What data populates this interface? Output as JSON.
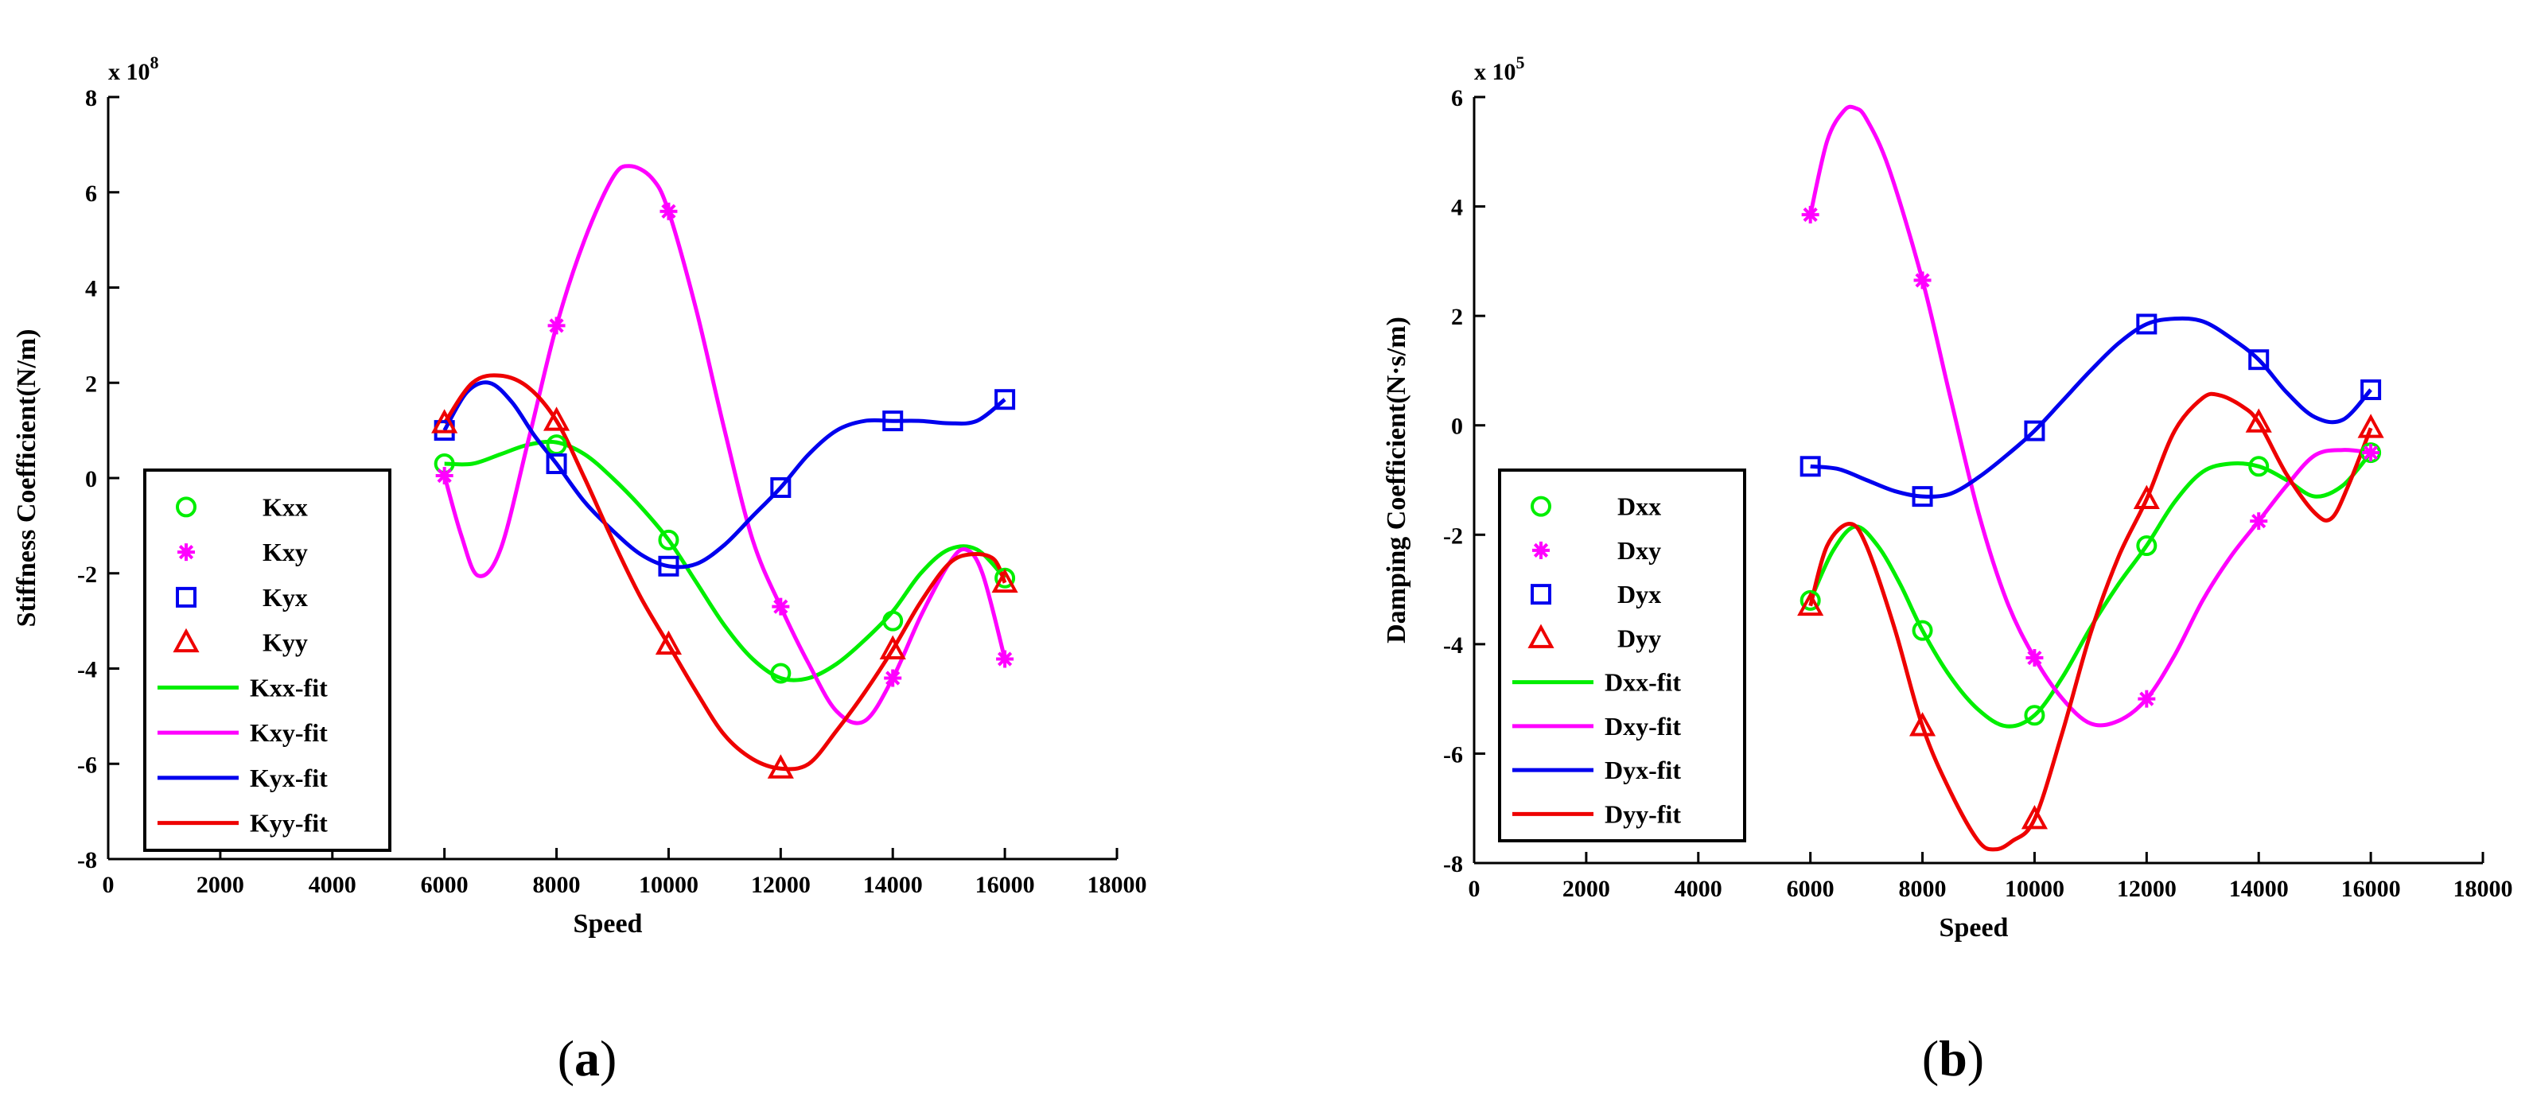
{
  "chart_data": [
    {
      "type": "line",
      "panel_label": "(a)",
      "panel_letter": "a",
      "xlabel": "Speed",
      "ylabel": "Stiffness Coefficient(N/m)",
      "y_exponent_label": "x 10",
      "y_exponent": "8",
      "xlim": [
        0,
        18000
      ],
      "ylim": [
        -8,
        8
      ],
      "xticks": [
        0,
        2000,
        4000,
        6000,
        8000,
        10000,
        12000,
        14000,
        16000,
        18000
      ],
      "yticks": [
        -8,
        -6,
        -4,
        -2,
        0,
        2,
        4,
        6,
        8
      ],
      "legend_position": "lower-left",
      "x": [
        6000,
        8000,
        10000,
        12000,
        14000,
        16000
      ],
      "series": [
        {
          "name": "Kxx",
          "kind": "marker",
          "marker": "circle",
          "color": "#00ee00",
          "values": [
            0.3,
            0.7,
            -1.3,
            -4.1,
            -3.0,
            -2.1
          ]
        },
        {
          "name": "Kxy",
          "kind": "marker",
          "marker": "star",
          "color": "#ff00ff",
          "values": [
            0.05,
            3.2,
            5.6,
            -2.7,
            -4.2,
            -3.8
          ]
        },
        {
          "name": "Kyx",
          "kind": "marker",
          "marker": "square",
          "color": "#0000ee",
          "values": [
            1.0,
            0.3,
            -1.85,
            -0.2,
            1.2,
            1.65
          ]
        },
        {
          "name": "Kyy",
          "kind": "marker",
          "marker": "triangle",
          "color": "#ee0000",
          "values": [
            1.15,
            1.2,
            -3.5,
            -6.1,
            -3.6,
            -2.2
          ]
        },
        {
          "name": "Kxx-fit",
          "kind": "line",
          "color": "#00ee00",
          "x": [
            6000,
            6500,
            7000,
            7500,
            8000,
            8500,
            9000,
            9500,
            10000,
            10500,
            11000,
            11500,
            12000,
            12500,
            13000,
            13500,
            14000,
            14500,
            15000,
            15500,
            16000
          ],
          "values": [
            0.3,
            0.3,
            0.5,
            0.7,
            0.75,
            0.5,
            0.0,
            -0.6,
            -1.3,
            -2.2,
            -3.1,
            -3.8,
            -4.2,
            -4.2,
            -3.9,
            -3.4,
            -2.8,
            -2.0,
            -1.5,
            -1.5,
            -2.1
          ]
        },
        {
          "name": "Kxy-fit",
          "kind": "line",
          "color": "#ff00ff",
          "x": [
            6000,
            6300,
            6600,
            7000,
            7500,
            8000,
            8500,
            9000,
            9300,
            9700,
            10000,
            10500,
            11000,
            11500,
            12000,
            12500,
            13000,
            13500,
            14000,
            14500,
            15000,
            15300,
            15600,
            16000
          ],
          "values": [
            0.05,
            -1.2,
            -2.05,
            -1.5,
            0.8,
            3.2,
            5.0,
            6.3,
            6.55,
            6.3,
            5.6,
            3.5,
            1.0,
            -1.3,
            -2.7,
            -3.9,
            -4.9,
            -5.1,
            -4.2,
            -2.9,
            -1.8,
            -1.5,
            -2.0,
            -3.8
          ]
        },
        {
          "name": "Kyx-fit",
          "kind": "line",
          "color": "#0000ee",
          "x": [
            6000,
            6400,
            6800,
            7200,
            7600,
            8000,
            8500,
            9000,
            9500,
            10000,
            10500,
            11000,
            11500,
            12000,
            12500,
            13000,
            13500,
            14000,
            14500,
            15000,
            15500,
            16000
          ],
          "values": [
            1.0,
            1.8,
            2.0,
            1.6,
            0.9,
            0.3,
            -0.5,
            -1.1,
            -1.6,
            -1.85,
            -1.8,
            -1.4,
            -0.8,
            -0.2,
            0.5,
            1.0,
            1.2,
            1.2,
            1.2,
            1.15,
            1.2,
            1.65
          ]
        },
        {
          "name": "Kyy-fit",
          "kind": "line",
          "color": "#ee0000",
          "x": [
            6000,
            6500,
            7000,
            7500,
            8000,
            8500,
            9000,
            9500,
            10000,
            10500,
            11000,
            11500,
            12000,
            12500,
            13000,
            13500,
            14000,
            14500,
            15000,
            15400,
            15800,
            16000
          ],
          "values": [
            1.15,
            2.0,
            2.15,
            1.9,
            1.2,
            0.0,
            -1.3,
            -2.5,
            -3.5,
            -4.5,
            -5.4,
            -5.9,
            -6.1,
            -6.0,
            -5.3,
            -4.5,
            -3.6,
            -2.6,
            -1.8,
            -1.6,
            -1.7,
            -2.2
          ]
        }
      ]
    },
    {
      "type": "line",
      "panel_label": "(b)",
      "panel_letter": "b",
      "xlabel": "Speed",
      "ylabel": "Damping Coefficient(N·s/m)",
      "y_exponent_label": "x 10",
      "y_exponent": "5",
      "xlim": [
        0,
        18000
      ],
      "ylim": [
        -8,
        6
      ],
      "xticks": [
        0,
        2000,
        4000,
        6000,
        8000,
        10000,
        12000,
        14000,
        16000,
        18000
      ],
      "yticks": [
        -8,
        -6,
        -4,
        -2,
        0,
        2,
        4,
        6
      ],
      "legend_position": "lower-left",
      "x": [
        6000,
        8000,
        10000,
        12000,
        14000,
        16000
      ],
      "series": [
        {
          "name": "Dxx",
          "kind": "marker",
          "marker": "circle",
          "color": "#00ee00",
          "values": [
            -3.2,
            -3.75,
            -5.3,
            -2.2,
            -0.75,
            -0.5
          ]
        },
        {
          "name": "Dxy",
          "kind": "marker",
          "marker": "star",
          "color": "#ff00ff",
          "values": [
            3.85,
            2.65,
            -4.25,
            -5.0,
            -1.75,
            -0.5
          ]
        },
        {
          "name": "Dyx",
          "kind": "marker",
          "marker": "square",
          "color": "#0000ee",
          "values": [
            -0.75,
            -1.3,
            -0.1,
            1.85,
            1.2,
            0.65
          ]
        },
        {
          "name": "Dyy",
          "kind": "marker",
          "marker": "triangle",
          "color": "#ee0000",
          "values": [
            -3.3,
            -5.5,
            -7.2,
            -1.35,
            0.05,
            -0.05
          ]
        },
        {
          "name": "Dxx-fit",
          "kind": "line",
          "color": "#00ee00",
          "x": [
            6000,
            6400,
            6800,
            7200,
            7600,
            8000,
            8500,
            9000,
            9500,
            10000,
            10500,
            11000,
            11500,
            12000,
            12500,
            13000,
            13500,
            14000,
            14500,
            15000,
            15500,
            16000
          ],
          "values": [
            -3.2,
            -2.3,
            -1.85,
            -2.2,
            -2.9,
            -3.75,
            -4.6,
            -5.2,
            -5.5,
            -5.3,
            -4.6,
            -3.7,
            -2.9,
            -2.2,
            -1.4,
            -0.85,
            -0.7,
            -0.75,
            -1.0,
            -1.3,
            -1.1,
            -0.5
          ]
        },
        {
          "name": "Dxy-fit",
          "kind": "line",
          "color": "#ff00ff",
          "x": [
            6000,
            6300,
            6600,
            6800,
            7000,
            7400,
            8000,
            8500,
            9000,
            9500,
            10000,
            10500,
            11000,
            11500,
            12000,
            12500,
            13000,
            13500,
            14000,
            14500,
            15000,
            15500,
            16000
          ],
          "values": [
            3.85,
            5.2,
            5.75,
            5.8,
            5.6,
            4.7,
            2.65,
            0.5,
            -1.6,
            -3.2,
            -4.25,
            -5.0,
            -5.45,
            -5.4,
            -5.0,
            -4.2,
            -3.2,
            -2.4,
            -1.75,
            -1.1,
            -0.55,
            -0.45,
            -0.5
          ]
        },
        {
          "name": "Dyx-fit",
          "kind": "line",
          "color": "#0000ee",
          "x": [
            6000,
            6500,
            7000,
            7500,
            8000,
            8500,
            9000,
            9500,
            10000,
            10500,
            11000,
            11500,
            12000,
            12500,
            13000,
            13500,
            14000,
            14500,
            15000,
            15500,
            16000
          ],
          "values": [
            -0.75,
            -0.8,
            -1.0,
            -1.2,
            -1.3,
            -1.25,
            -0.95,
            -0.55,
            -0.1,
            0.45,
            1.0,
            1.5,
            1.85,
            1.95,
            1.9,
            1.6,
            1.2,
            0.6,
            0.15,
            0.1,
            0.65
          ]
        },
        {
          "name": "Dyy-fit",
          "kind": "line",
          "color": "#ee0000",
          "x": [
            6000,
            6300,
            6700,
            7000,
            7500,
            8000,
            8500,
            9000,
            9300,
            9600,
            10000,
            10500,
            11000,
            11500,
            12000,
            12500,
            13000,
            13300,
            13700,
            14000,
            14500,
            15000,
            15300,
            15600,
            16000
          ],
          "values": [
            -3.3,
            -2.2,
            -1.8,
            -2.2,
            -3.7,
            -5.5,
            -6.7,
            -7.6,
            -7.75,
            -7.6,
            -7.2,
            -5.6,
            -3.8,
            -2.4,
            -1.35,
            -0.1,
            0.5,
            0.55,
            0.35,
            0.05,
            -0.9,
            -1.6,
            -1.7,
            -1.1,
            -0.05
          ]
        }
      ]
    }
  ]
}
